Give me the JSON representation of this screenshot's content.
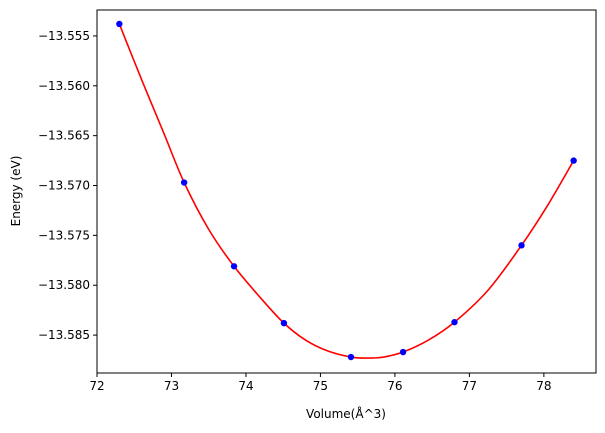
{
  "chart_data": {
    "type": "line",
    "xlabel": "Volume(Å^3)",
    "ylabel": "Energy (eV)",
    "xlim": [
      72.0,
      78.7
    ],
    "ylim": [
      -13.5888,
      -13.5524
    ],
    "x_ticks": [
      72,
      73,
      74,
      75,
      76,
      77,
      78
    ],
    "y_ticks": [
      -13.555,
      -13.56,
      -13.565,
      -13.57,
      -13.575,
      -13.58,
      -13.585
    ],
    "x_tick_labels": [
      "72",
      "73",
      "74",
      "75",
      "76",
      "77",
      "78"
    ],
    "y_tick_labels": [
      "−13.555",
      "−13.560",
      "−13.565",
      "−13.570",
      "−13.575",
      "−13.580",
      "−13.585"
    ],
    "series": [
      {
        "kind": "scatter",
        "color": "#0000ff",
        "x": [
          72.3,
          73.17,
          73.84,
          74.51,
          75.41,
          76.11,
          76.8,
          77.7,
          78.4
        ],
        "y": [
          -13.5538,
          -13.5697,
          -13.5781,
          -13.5838,
          -13.5872,
          -13.5867,
          -13.5837,
          -13.576,
          -13.5675
        ]
      },
      {
        "kind": "fit-line",
        "color": "#ff0000",
        "x": [
          72.3,
          72.6,
          72.9,
          73.17,
          73.5,
          73.84,
          74.2,
          74.51,
          74.8,
          75.1,
          75.41,
          75.62,
          75.85,
          76.11,
          76.45,
          76.8,
          77.25,
          77.7,
          78.05,
          78.4
        ],
        "y": [
          -13.5538,
          -13.5594,
          -13.5648,
          -13.5697,
          -13.5744,
          -13.5781,
          -13.5813,
          -13.5838,
          -13.5855,
          -13.5866,
          -13.5872,
          -13.5873,
          -13.5872,
          -13.5867,
          -13.5855,
          -13.5837,
          -13.5805,
          -13.576,
          -13.572,
          -13.5675
        ]
      }
    ]
  }
}
